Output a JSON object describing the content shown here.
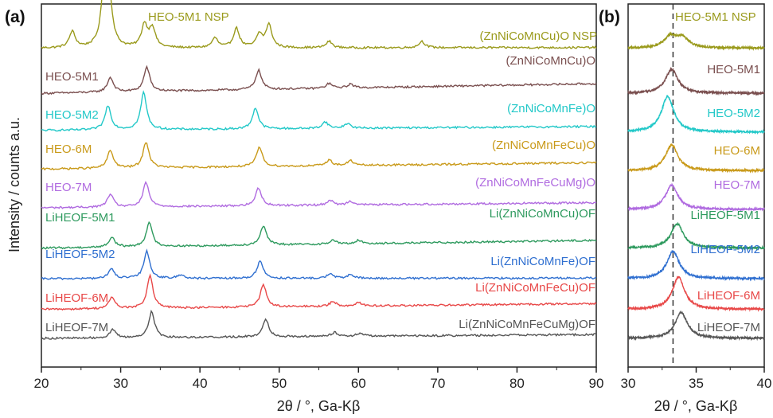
{
  "panels": {
    "a_label": "(a)",
    "b_label": "(b)",
    "ylabel": "Intensity / counts a.u.",
    "xlabel_a": "2θ / °, Ga-Kβ",
    "xlabel_b": "2θ / °, Ga-Kβ"
  },
  "chart_data": [
    {
      "type": "line",
      "panel": "a",
      "xlabel": "2θ / °, Ga-Kβ",
      "ylabel": "Intensity / counts a.u.",
      "xlim": [
        20,
        90
      ],
      "xticks": [
        20,
        30,
        40,
        50,
        60,
        70,
        80,
        90
      ],
      "yticks_shown": false,
      "annotation": "HEO-5M1 NSP",
      "series": [
        {
          "name": "HEO-5M1 NSP",
          "composition": "(ZnNiCoMnCu)O NSP",
          "color": "#9a9a1c",
          "offset": 9.0,
          "slope": 0.02,
          "peaks": [
            {
              "x": 23.9,
              "h": 0.5
            },
            {
              "x": 28.0,
              "h": 2.3
            },
            {
              "x": 28.6,
              "h": 1.1
            },
            {
              "x": 33.0,
              "h": 0.7
            },
            {
              "x": 34.0,
              "h": 0.6
            },
            {
              "x": 41.9,
              "h": 0.3
            },
            {
              "x": 44.6,
              "h": 0.6
            },
            {
              "x": 47.5,
              "h": 0.4
            },
            {
              "x": 48.7,
              "h": 0.7
            },
            {
              "x": 56.3,
              "h": 0.2
            },
            {
              "x": 68.0,
              "h": 0.2
            }
          ]
        },
        {
          "name": "HEO-5M1",
          "composition": "(ZnNiCoMnCu)O",
          "color": "#7a4f4f",
          "offset": 7.6,
          "slope": 0.3,
          "peaks": [
            {
              "x": 28.7,
              "h": 0.45
            },
            {
              "x": 33.3,
              "h": 0.75
            },
            {
              "x": 47.4,
              "h": 0.6
            },
            {
              "x": 56.3,
              "h": 0.15
            },
            {
              "x": 59.0,
              "h": 0.12
            }
          ]
        },
        {
          "name": "HEO-5M2",
          "composition": "(ZnNiCoMnFe)O",
          "color": "#22c8c8",
          "offset": 6.45,
          "slope": 0.12,
          "peaks": [
            {
              "x": 28.4,
              "h": 0.75
            },
            {
              "x": 32.9,
              "h": 1.15
            },
            {
              "x": 47.0,
              "h": 0.65
            },
            {
              "x": 55.8,
              "h": 0.2
            },
            {
              "x": 58.6,
              "h": 0.15
            }
          ]
        },
        {
          "name": "HEO-6M",
          "composition": "(ZnNiCoMnFeCu)O",
          "color": "#c99a1a",
          "offset": 5.25,
          "slope": 0.2,
          "peaks": [
            {
              "x": 28.7,
              "h": 0.55
            },
            {
              "x": 33.2,
              "h": 0.8
            },
            {
              "x": 47.5,
              "h": 0.6
            },
            {
              "x": 56.3,
              "h": 0.18
            },
            {
              "x": 59.0,
              "h": 0.15
            }
          ]
        },
        {
          "name": "HEO-7M",
          "composition": "(ZnNiCoMnFeCuMg)O",
          "color": "#b06be0",
          "offset": 4.05,
          "slope": 0.16,
          "peaks": [
            {
              "x": 28.7,
              "h": 0.4
            },
            {
              "x": 33.2,
              "h": 0.75
            },
            {
              "x": 47.4,
              "h": 0.55
            },
            {
              "x": 56.4,
              "h": 0.15
            },
            {
              "x": 59.0,
              "h": 0.12
            }
          ]
        },
        {
          "name": "LiHEOF-5M1",
          "composition": "Li(ZnNiCoMnCu)OF",
          "color": "#2e9a5e",
          "offset": 2.8,
          "slope": 0.24,
          "peaks": [
            {
              "x": 28.9,
              "h": 0.3
            },
            {
              "x": 33.6,
              "h": 0.75
            },
            {
              "x": 48.0,
              "h": 0.6
            },
            {
              "x": 56.8,
              "h": 0.12
            },
            {
              "x": 60.0,
              "h": 0.1
            }
          ]
        },
        {
          "name": "LiHEOF-5M2",
          "composition": "Li(ZnNiCoMnFe)OF",
          "color": "#2f6fd0",
          "offset": 1.85,
          "slope": 0.02,
          "peaks": [
            {
              "x": 28.8,
              "h": 0.3
            },
            {
              "x": 33.3,
              "h": 0.85
            },
            {
              "x": 37.6,
              "h": 0.12
            },
            {
              "x": 47.6,
              "h": 0.55
            },
            {
              "x": 56.4,
              "h": 0.15
            },
            {
              "x": 59.0,
              "h": 0.12
            }
          ]
        },
        {
          "name": "LiHEOF-6M",
          "composition": "Li(ZnNiCoMnFeCu)OF",
          "color": "#e84848",
          "offset": 0.9,
          "slope": 0.18,
          "peaks": [
            {
              "x": 28.9,
              "h": 0.35
            },
            {
              "x": 33.7,
              "h": 1.0
            },
            {
              "x": 48.0,
              "h": 0.7
            },
            {
              "x": 56.8,
              "h": 0.15
            },
            {
              "x": 60.0,
              "h": 0.12
            }
          ]
        },
        {
          "name": "LiHEOF-7M",
          "composition": "Li(ZnNiCoMnFeCuMg)OF",
          "color": "#555555",
          "offset": 0.0,
          "slope": 0.12,
          "peaks": [
            {
              "x": 29.0,
              "h": 0.25
            },
            {
              "x": 33.9,
              "h": 0.8
            },
            {
              "x": 48.3,
              "h": 0.55
            },
            {
              "x": 57.0,
              "h": 0.12
            },
            {
              "x": 60.2,
              "h": 0.1
            }
          ]
        }
      ]
    },
    {
      "type": "line",
      "panel": "b",
      "xlabel": "2θ / °, Ga-Kβ",
      "xlim": [
        30,
        40
      ],
      "xticks": [
        30,
        35,
        40
      ],
      "reference_line_x": 33.3,
      "annotation": "HEO-5M1 NSP",
      "series": [
        {
          "name": "HEO-5M1 NSP",
          "color": "#9a9a1c",
          "offset": 9.0,
          "peaks": [
            {
              "x": 33.1,
              "h": 0.35
            },
            {
              "x": 34.0,
              "h": 0.3
            }
          ]
        },
        {
          "name": "HEO-5M1",
          "color": "#7a4f4f",
          "offset": 7.6,
          "peaks": [
            {
              "x": 33.2,
              "h": 0.75
            }
          ]
        },
        {
          "name": "HEO-5M2",
          "color": "#22c8c8",
          "offset": 6.4,
          "peaks": [
            {
              "x": 32.9,
              "h": 1.1
            }
          ]
        },
        {
          "name": "HEO-6M",
          "color": "#c99a1a",
          "offset": 5.2,
          "peaks": [
            {
              "x": 33.2,
              "h": 0.8
            }
          ]
        },
        {
          "name": "HEO-7M",
          "color": "#b06be0",
          "offset": 4.0,
          "peaks": [
            {
              "x": 33.2,
              "h": 0.75
            }
          ]
        },
        {
          "name": "LiHEOF-5M1",
          "color": "#2e9a5e",
          "offset": 2.8,
          "peaks": [
            {
              "x": 33.6,
              "h": 0.75
            }
          ]
        },
        {
          "name": "LiHEOF-5M2",
          "color": "#2f6fd0",
          "offset": 1.85,
          "peaks": [
            {
              "x": 33.3,
              "h": 0.85
            }
          ]
        },
        {
          "name": "LiHEOF-6M",
          "color": "#e84848",
          "offset": 0.9,
          "peaks": [
            {
              "x": 33.7,
              "h": 1.0
            }
          ]
        },
        {
          "name": "LiHEOF-7M",
          "color": "#555555",
          "offset": 0.0,
          "peaks": [
            {
              "x": 33.9,
              "h": 0.8
            }
          ]
        }
      ]
    }
  ]
}
